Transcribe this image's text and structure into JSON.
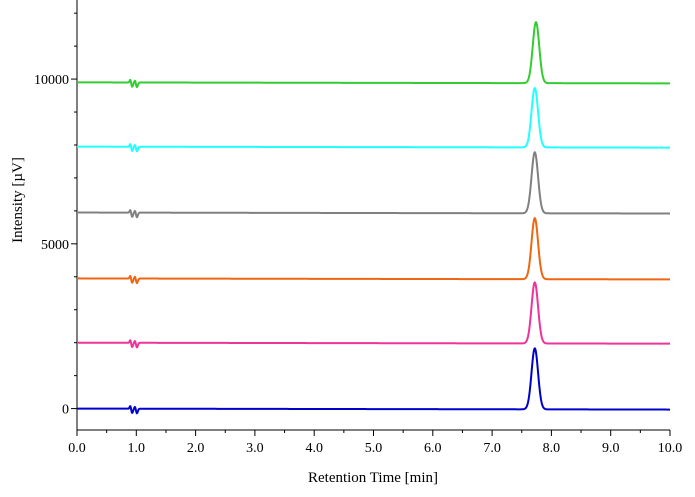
{
  "chart_data": {
    "type": "line",
    "title": "",
    "xlabel": "Retention Time [min]",
    "ylabel": "Intensity [µV]",
    "xlim": [
      0.0,
      10.0
    ],
    "ylim": [
      -650,
      12400
    ],
    "x_ticks": [
      "0.0",
      "1.0",
      "2.0",
      "3.0",
      "4.0",
      "5.0",
      "6.0",
      "7.0",
      "8.0",
      "9.0",
      "10.0"
    ],
    "y_ticks": [
      "0",
      "5000",
      "10000"
    ],
    "x_tick_values": [
      0,
      1,
      2,
      3,
      4,
      5,
      6,
      7,
      8,
      9,
      10
    ],
    "y_tick_values": [
      0,
      5000,
      10000
    ],
    "grid": false,
    "legend": "none",
    "peak_width_min": 0.055,
    "series": [
      {
        "color": "#0000cc",
        "baseline": 0,
        "peak_rt": 7.72,
        "peak_height": 1850
      },
      {
        "color": "#ee3399",
        "baseline": 2000,
        "peak_rt": 7.72,
        "peak_height": 1850
      },
      {
        "color": "#ee6611",
        "baseline": 3950,
        "peak_rt": 7.72,
        "peak_height": 1850
      },
      {
        "color": "#808080",
        "baseline": 5950,
        "peak_rt": 7.72,
        "peak_height": 1850
      },
      {
        "color": "#22ffff",
        "baseline": 7950,
        "peak_rt": 7.72,
        "peak_height": 1800
      },
      {
        "color": "#33cc33",
        "baseline": 9900,
        "peak_rt": 7.74,
        "peak_height": 1850
      }
    ]
  }
}
